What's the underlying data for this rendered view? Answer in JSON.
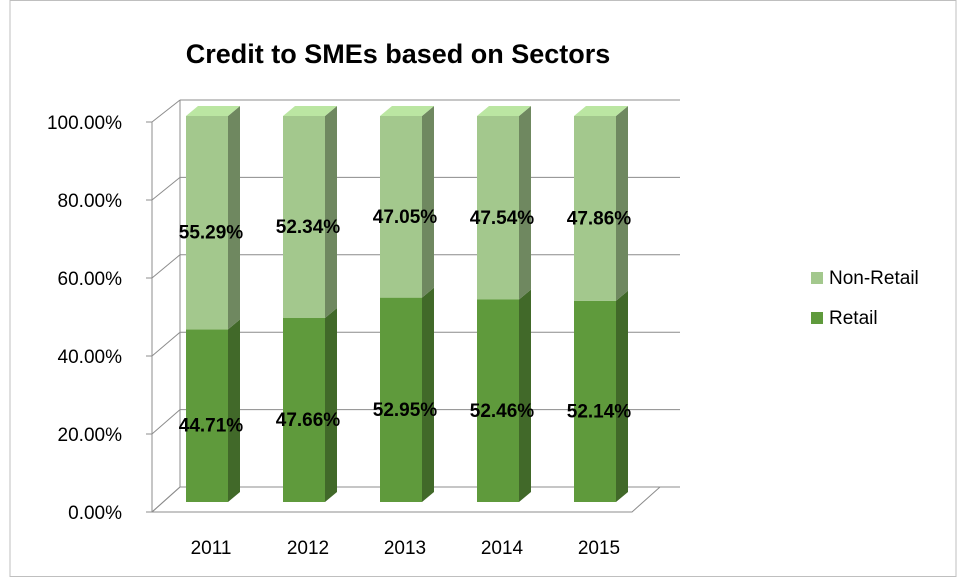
{
  "chart_data": {
    "type": "stacked_bar_3d",
    "title": "Credit to SMEs based on Sectors",
    "categories": [
      "2011",
      "2012",
      "2013",
      "2014",
      "2015"
    ],
    "series": [
      {
        "name": "Retail",
        "color": "#5f9a3c",
        "values": [
          44.71,
          47.66,
          52.95,
          52.46,
          52.14
        ],
        "value_labels": [
          "44.71%",
          "47.66%",
          "52.95%",
          "52.46%",
          "52.14%"
        ]
      },
      {
        "name": "Non-Retail",
        "color": "#a3c88d",
        "values": [
          55.29,
          52.34,
          47.05,
          47.54,
          47.86
        ],
        "value_labels": [
          "55.29%",
          "52.34%",
          "47.05%",
          "47.54%",
          "47.86%"
        ]
      }
    ],
    "ylim": [
      0,
      100
    ],
    "yticks": [
      {
        "value": 0,
        "label": "0.00%"
      },
      {
        "value": 20,
        "label": "20.00%"
      },
      {
        "value": 40,
        "label": "40.00%"
      },
      {
        "value": 60,
        "label": "60.00%"
      },
      {
        "value": 80,
        "label": "80.00%"
      },
      {
        "value": 100,
        "label": "100.00%"
      }
    ],
    "grid": true,
    "legend": "right"
  }
}
